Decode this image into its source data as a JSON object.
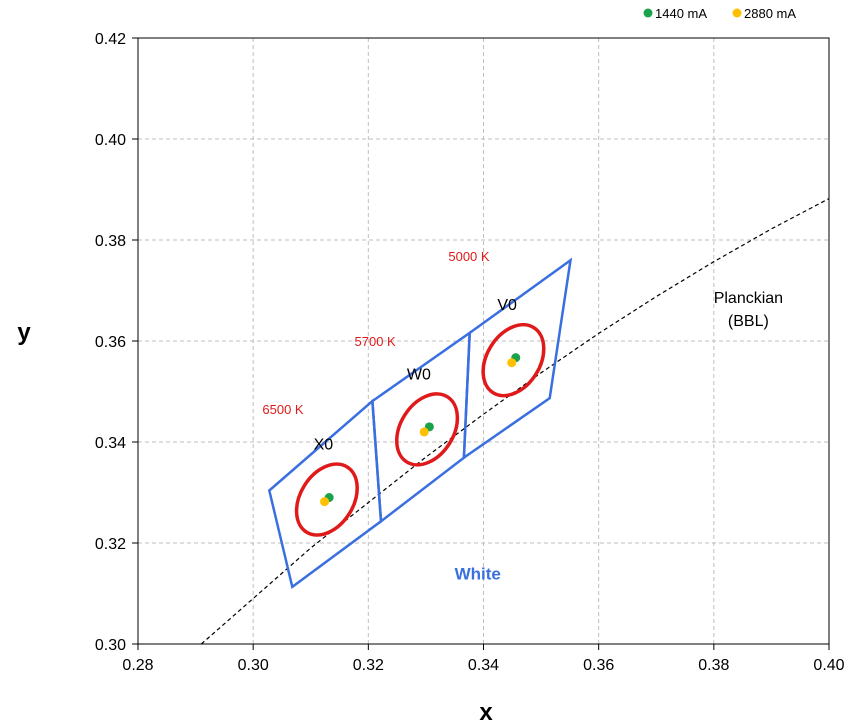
{
  "chart_data": {
    "type": "scatter",
    "xlabel": "x",
    "ylabel": "y",
    "xlim": [
      0.28,
      0.4
    ],
    "ylim": [
      0.3,
      0.42
    ],
    "x_ticks": [
      "0.28",
      "0.30",
      "0.32",
      "0.34",
      "0.36",
      "0.38",
      "0.40"
    ],
    "y_ticks": [
      "0.30",
      "0.32",
      "0.34",
      "0.36",
      "0.38",
      "0.40",
      "0.42"
    ],
    "grid": true,
    "legend_position": "top-right",
    "series": [
      {
        "name": "1440 mA",
        "color": "#1aa34a",
        "x": [
          0.3132,
          0.3306,
          0.3456
        ],
        "y": [
          0.329,
          0.343,
          0.3567
        ]
      },
      {
        "name": "2880 mA",
        "color": "#ffc000",
        "x": [
          0.3124,
          0.3297,
          0.3449
        ],
        "y": [
          0.3282,
          0.342,
          0.3557
        ]
      }
    ],
    "planckian_curve": {
      "color": "#000000",
      "x": [
        0.291,
        0.3,
        0.31,
        0.32,
        0.33,
        0.34,
        0.35,
        0.36,
        0.37,
        0.38,
        0.39,
        0.4
      ],
      "y": [
        0.3,
        0.309,
        0.319,
        0.328,
        0.337,
        0.3455,
        0.3537,
        0.3615,
        0.3688,
        0.3757,
        0.3822,
        0.3882
      ]
    },
    "bins": [
      {
        "label": "X0",
        "cct_label": "6500 K",
        "corners": [
          [
            0.3028,
            0.3304
          ],
          [
            0.3207,
            0.3481
          ],
          [
            0.3222,
            0.3243
          ],
          [
            0.3068,
            0.3113
          ]
        ]
      },
      {
        "label": "W0",
        "cct_label": "5700 K",
        "corners": [
          [
            0.3207,
            0.3481
          ],
          [
            0.3376,
            0.3616
          ],
          [
            0.3366,
            0.3369
          ],
          [
            0.3222,
            0.3243
          ]
        ]
      },
      {
        "label": "V0",
        "cct_label": "5000 K",
        "corners": [
          [
            0.3376,
            0.3616
          ],
          [
            0.3551,
            0.376
          ],
          [
            0.3515,
            0.3487
          ],
          [
            0.3366,
            0.3369
          ]
        ]
      }
    ],
    "ellipses": [
      {
        "cx": 0.3128,
        "cy": 0.3286,
        "a": 0.0046,
        "b": 0.0076,
        "angle_deg": 32,
        "color": "#e01a1a"
      },
      {
        "cx": 0.3302,
        "cy": 0.3425,
        "a": 0.0046,
        "b": 0.0076,
        "angle_deg": 32,
        "color": "#e01a1a"
      },
      {
        "cx": 0.3452,
        "cy": 0.3562,
        "a": 0.0046,
        "b": 0.0076,
        "angle_deg": 32,
        "color": "#e01a1a"
      }
    ],
    "annotations": [
      {
        "text": "White",
        "x": 0.339,
        "y": 0.3128,
        "color": "#3a6fe0"
      },
      {
        "text": "Planckian",
        "x": 0.386,
        "y": 0.3675,
        "color": "#000000"
      },
      {
        "text": "(BBL)",
        "x": 0.386,
        "y": 0.363,
        "color": "#000000"
      }
    ],
    "colors": {
      "bin_outline": "#3a6fe0",
      "cct_label": "#e01a1a",
      "grid": "#bfbfbf",
      "axis": "#000000"
    }
  }
}
